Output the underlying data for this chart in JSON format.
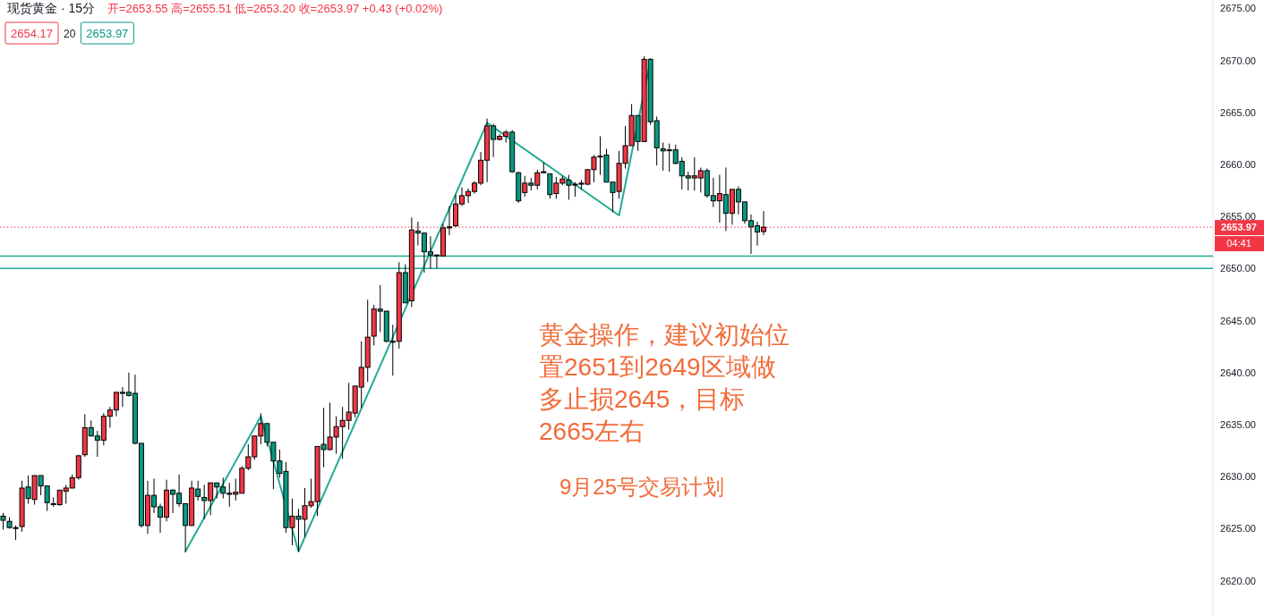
{
  "chart_data": {
    "type": "candlestick",
    "title": "现货黄金 · 15分",
    "subtitle": "开=2653.55 高=2655.51 低=2653.20 收=2653.97 +0.43 (+0.02%)",
    "categories": [
      null,
      null,
      null,
      null,
      null,
      null,
      null,
      null,
      null,
      null,
      null,
      null,
      null,
      null,
      null,
      null,
      null,
      null,
      null,
      null,
      null,
      null,
      null,
      null,
      null,
      null,
      null,
      null,
      null,
      null,
      null,
      null,
      null,
      null,
      null,
      null,
      null,
      null,
      null,
      null,
      null,
      null,
      null,
      null,
      null,
      null,
      null,
      null,
      null,
      null,
      null,
      null,
      null,
      null,
      null,
      null,
      null,
      null,
      null,
      null,
      null,
      null,
      null,
      null,
      null,
      null,
      null,
      null,
      null,
      null,
      null,
      null,
      null,
      null,
      null,
      null,
      null,
      null,
      null,
      null,
      null,
      null,
      null,
      null,
      null,
      null,
      null,
      null,
      null,
      null,
      null,
      null,
      null,
      null,
      null,
      null,
      null,
      null,
      null,
      null,
      null,
      null,
      null,
      null,
      null,
      null,
      null,
      null,
      null,
      null,
      null,
      null,
      null,
      null,
      null,
      null,
      null,
      null,
      null,
      null,
      null,
      null,
      null,
      null,
      null,
      null,
      null,
      null,
      null,
      null,
      null,
      null,
      null,
      null,
      null,
      null,
      null,
      null,
      null,
      null,
      null,
      null,
      null,
      null,
      null,
      null,
      null,
      null,
      null,
      null,
      null,
      null,
      null,
      null,
      null,
      null,
      null,
      null,
      null,
      null,
      null,
      null,
      null,
      null,
      null,
      null,
      null,
      null,
      null,
      null,
      null,
      null,
      null,
      null,
      null,
      null,
      null,
      null,
      null,
      null,
      null,
      null,
      null,
      null,
      null,
      null,
      null,
      null,
      null,
      null,
      null,
      null,
      null
    ],
    "ohlc": [
      [
        2626.2,
        2626.5,
        2624.9,
        2625.8
      ],
      [
        2625.7,
        2626.1,
        2625.0,
        2625.1
      ],
      [
        2625.1,
        2625.3,
        2623.9,
        2625.1
      ],
      [
        2625.2,
        2629.6,
        2624.7,
        2628.9
      ],
      [
        2629.0,
        2630.1,
        2627.4,
        2627.9
      ],
      [
        2627.8,
        2630.1,
        2627.3,
        2630.1
      ],
      [
        2630.1,
        2630.1,
        2628.2,
        2629.1
      ],
      [
        2629.1,
        2629.1,
        2626.7,
        2627.5
      ],
      [
        2627.4,
        2628.0,
        2627.1,
        2627.4
      ],
      [
        2627.3,
        2628.7,
        2627.2,
        2628.7
      ],
      [
        2628.6,
        2629.2,
        2627.4,
        2628.9
      ],
      [
        2628.9,
        2630.2,
        2628.9,
        2629.9
      ],
      [
        2629.9,
        2632.1,
        2629.7,
        2632.0
      ],
      [
        2632.1,
        2636.0,
        2631.9,
        2634.7
      ],
      [
        2634.7,
        2635.4,
        2633.9,
        2633.9
      ],
      [
        2633.9,
        2634.4,
        2631.9,
        2633.5
      ],
      [
        2633.5,
        2636.1,
        2633.0,
        2635.8
      ],
      [
        2635.8,
        2636.7,
        2634.7,
        2636.4
      ],
      [
        2636.4,
        2638.1,
        2635.8,
        2638.1
      ],
      [
        2638.0,
        2638.6,
        2636.7,
        2638.1
      ],
      [
        2638.1,
        2640.0,
        2637.7,
        2637.8
      ],
      [
        2638.0,
        2639.8,
        2633.1,
        2633.2
      ],
      [
        2633.2,
        2633.2,
        2625.1,
        2625.3
      ],
      [
        2625.3,
        2629.6,
        2624.5,
        2628.2
      ],
      [
        2628.2,
        2629.8,
        2626.5,
        2627.1
      ],
      [
        2627.1,
        2627.4,
        2624.6,
        2626.1
      ],
      [
        2626.1,
        2629.7,
        2625.7,
        2628.7
      ],
      [
        2628.7,
        2628.8,
        2626.5,
        2628.3
      ],
      [
        2628.4,
        2630.2,
        2627.1,
        2627.4
      ],
      [
        2627.4,
        2627.4,
        2622.7,
        2625.3
      ],
      [
        2625.3,
        2629.6,
        2625.3,
        2628.9
      ],
      [
        2628.8,
        2629.6,
        2627.7,
        2628.1
      ],
      [
        2628.0,
        2629.2,
        2625.9,
        2627.7
      ],
      [
        2627.7,
        2629.4,
        2626.3,
        2629.4
      ],
      [
        2629.4,
        2629.4,
        2627.9,
        2629.0
      ],
      [
        2629.0,
        2629.9,
        2627.9,
        2628.4
      ],
      [
        2628.4,
        2629.4,
        2627.1,
        2628.3
      ],
      [
        2628.3,
        2629.8,
        2627.7,
        2628.5
      ],
      [
        2628.4,
        2631.0,
        2628.4,
        2630.8
      ],
      [
        2630.8,
        2633.1,
        2630.6,
        2631.9
      ],
      [
        2631.9,
        2633.9,
        2631.6,
        2633.9
      ],
      [
        2633.9,
        2636.1,
        2633.1,
        2635.1
      ],
      [
        2635.1,
        2635.1,
        2632.9,
        2633.3
      ],
      [
        2633.3,
        2633.3,
        2628.8,
        2631.5
      ],
      [
        2631.5,
        2632.6,
        2629.9,
        2630.3
      ],
      [
        2630.5,
        2631.4,
        2624.6,
        2625.1
      ],
      [
        2625.1,
        2627.9,
        2623.4,
        2626.2
      ],
      [
        2626.2,
        2626.9,
        2622.8,
        2625.9
      ],
      [
        2625.9,
        2628.9,
        2624.2,
        2627.2
      ],
      [
        2627.2,
        2629.8,
        2627.0,
        2627.6
      ],
      [
        2627.6,
        2632.9,
        2626.2,
        2632.9
      ],
      [
        2633.1,
        2636.6,
        2630.9,
        2632.6
      ],
      [
        2632.6,
        2637.1,
        2632.5,
        2633.8
      ],
      [
        2633.8,
        2635.8,
        2632.2,
        2634.8
      ],
      [
        2634.8,
        2636.7,
        2631.7,
        2635.4
      ],
      [
        2635.4,
        2639.0,
        2634.5,
        2636.2
      ],
      [
        2636.1,
        2638.7,
        2635.7,
        2638.7
      ],
      [
        2638.6,
        2643.0,
        2636.6,
        2640.5
      ],
      [
        2640.5,
        2647.0,
        2639.1,
        2643.4
      ],
      [
        2643.5,
        2646.5,
        2642.6,
        2646.1
      ],
      [
        2646.1,
        2648.4,
        2643.9,
        2645.9
      ],
      [
        2645.9,
        2645.9,
        2642.9,
        2643.0
      ],
      [
        2643.0,
        2644.6,
        2639.7,
        2643.0
      ],
      [
        2643.0,
        2650.6,
        2642.3,
        2649.6
      ],
      [
        2649.6,
        2650.4,
        2646.7,
        2646.7
      ],
      [
        2646.9,
        2654.9,
        2646.3,
        2653.7
      ],
      [
        2653.6,
        2654.5,
        2652.2,
        2653.4
      ],
      [
        2653.4,
        2653.4,
        2649.6,
        2651.6
      ],
      [
        2651.6,
        2653.1,
        2650.0,
        2651.3
      ],
      [
        2651.3,
        2651.3,
        2650.0,
        2651.3
      ],
      [
        2651.2,
        2654.3,
        2651.2,
        2653.9
      ],
      [
        2653.9,
        2656.0,
        2653.2,
        2654.0
      ],
      [
        2654.1,
        2657.1,
        2654.0,
        2656.2
      ],
      [
        2656.2,
        2657.8,
        2656.0,
        2657.0
      ],
      [
        2657.0,
        2657.7,
        2656.3,
        2657.4
      ],
      [
        2657.4,
        2658.4,
        2657.2,
        2658.2
      ],
      [
        2658.2,
        2661.2,
        2658.0,
        2660.4
      ],
      [
        2660.4,
        2664.4,
        2658.3,
        2663.7
      ],
      [
        2663.7,
        2663.9,
        2660.7,
        2662.4
      ],
      [
        2662.4,
        2662.9,
        2662.3,
        2662.7
      ],
      [
        2662.7,
        2663.3,
        2662.1,
        2663.1
      ],
      [
        2663.1,
        2663.3,
        2659.2,
        2659.3
      ],
      [
        2659.2,
        2659.3,
        2656.3,
        2656.5
      ],
      [
        2657.3,
        2658.9,
        2656.9,
        2658.2
      ],
      [
        2658.2,
        2658.7,
        2657.5,
        2658.0
      ],
      [
        2658.0,
        2659.5,
        2657.6,
        2659.2
      ],
      [
        2659.2,
        2660.2,
        2659.2,
        2659.3
      ],
      [
        2659.1,
        2659.1,
        2656.7,
        2657.1
      ],
      [
        2657.2,
        2658.8,
        2656.7,
        2658.2
      ],
      [
        2658.2,
        2658.9,
        2658.0,
        2658.6
      ],
      [
        2658.5,
        2659.0,
        2656.6,
        2658.0
      ],
      [
        2658.1,
        2658.3,
        2656.9,
        2658.1
      ],
      [
        2658.1,
        2658.5,
        2657.6,
        2658.2
      ],
      [
        2658.1,
        2659.5,
        2658.0,
        2659.5
      ],
      [
        2659.5,
        2660.9,
        2658.3,
        2660.7
      ],
      [
        2660.8,
        2662.7,
        2659.0,
        2660.8
      ],
      [
        2660.9,
        2661.5,
        2658.3,
        2658.3
      ],
      [
        2658.3,
        2658.3,
        2655.4,
        2657.3
      ],
      [
        2657.4,
        2661.3,
        2656.7,
        2660.1
      ],
      [
        2660.1,
        2663.7,
        2659.6,
        2661.8
      ],
      [
        2661.8,
        2665.8,
        2661.8,
        2664.7
      ],
      [
        2664.7,
        2664.7,
        2661.3,
        2662.2
      ],
      [
        2662.2,
        2670.4,
        2662.2,
        2670.1
      ],
      [
        2670.1,
        2670.2,
        2663.8,
        2664.1
      ],
      [
        2664.2,
        2664.6,
        2659.9,
        2661.6
      ],
      [
        2661.5,
        2662.1,
        2659.4,
        2661.3
      ],
      [
        2661.4,
        2662.0,
        2659.3,
        2661.4
      ],
      [
        2661.4,
        2661.9,
        2660.0,
        2660.1
      ],
      [
        2660.3,
        2660.7,
        2657.6,
        2658.9
      ],
      [
        2658.9,
        2659.3,
        2657.5,
        2658.7
      ],
      [
        2658.7,
        2660.7,
        2657.5,
        2658.9
      ],
      [
        2658.7,
        2659.7,
        2657.3,
        2659.4
      ],
      [
        2659.4,
        2659.6,
        2656.8,
        2657.0
      ],
      [
        2657.0,
        2658.7,
        2655.9,
        2656.5
      ],
      [
        2656.5,
        2659.0,
        2654.4,
        2657.2
      ],
      [
        2657.1,
        2659.7,
        2653.6,
        2655.3
      ],
      [
        2655.3,
        2657.6,
        2654.2,
        2657.6
      ],
      [
        2657.6,
        2657.9,
        2655.2,
        2656.4
      ],
      [
        2656.4,
        2656.4,
        2654.3,
        2654.6
      ],
      [
        2654.6,
        2655.2,
        2651.4,
        2654.0
      ],
      [
        2654.1,
        2654.5,
        2652.2,
        2653.5
      ],
      [
        2653.55,
        2655.51,
        2653.2,
        2653.97
      ],
      null,
      null,
      null,
      null,
      null,
      null,
      null,
      null,
      null,
      null,
      null,
      null,
      null,
      null,
      null,
      null,
      null,
      null,
      null,
      null,
      null,
      null,
      null,
      null,
      null,
      null,
      null,
      null,
      null,
      null,
      null,
      null,
      null,
      null,
      null,
      null,
      null,
      null,
      null,
      null,
      null,
      null,
      null,
      null,
      null,
      null,
      null,
      null,
      null,
      null,
      null,
      null,
      null,
      null,
      null,
      null,
      null,
      null,
      null,
      null,
      null,
      null,
      null,
      null,
      null,
      null,
      null,
      null,
      null,
      null,
      null
    ],
    "colors": [
      "#089981",
      "#089981",
      "#f23645",
      "#f23645",
      "#089981",
      "#f23645",
      "#089981",
      "#089981",
      "#f23645",
      "#f23645",
      "#f23645",
      "#f23645",
      "#f23645",
      "#f23645",
      "#089981",
      "#089981",
      "#f23645",
      "#f23645",
      "#f23645",
      "#f23645",
      "#089981",
      "#089981",
      "#089981",
      "#f23645",
      "#089981",
      "#089981",
      "#f23645",
      "#089981",
      "#089981",
      "#089981",
      "#f23645",
      "#089981",
      "#089981",
      "#f23645",
      "#089981",
      "#089981",
      "#089981",
      "#f23645",
      "#f23645",
      "#f23645",
      "#f23645",
      "#f23645",
      "#089981",
      "#089981",
      "#089981",
      "#089981",
      "#f23645",
      "#089981",
      "#f23645",
      "#f23645",
      "#f23645",
      "#089981",
      "#f23645",
      "#f23645",
      "#f23645",
      "#f23645",
      "#f23645",
      "#f23645",
      "#f23645",
      "#f23645",
      "#089981",
      "#089981",
      "#f23645",
      "#f23645",
      "#089981",
      "#f23645",
      "#089981",
      "#089981",
      "#089981",
      "#f23645",
      "#f23645",
      "#f23645",
      "#f23645",
      "#f23645",
      "#f23645",
      "#f23645",
      "#f23645",
      "#f23645",
      "#089981",
      "#f23645",
      "#f23645",
      "#089981",
      "#089981",
      "#f23645",
      "#089981",
      "#f23645",
      "#f23645",
      "#089981",
      "#f23645",
      "#f23645",
      "#089981",
      "#f23645",
      "#f23645",
      "#f23645",
      "#f23645",
      "#f23645",
      "#089981",
      "#089981",
      "#f23645",
      "#f23645",
      "#f23645",
      "#089981",
      "#f23645",
      "#089981",
      "#089981",
      "#089981",
      "#f23645",
      "#089981",
      "#089981",
      "#089981",
      "#f23645",
      "#f23645",
      "#089981",
      "#089981",
      "#f23645",
      "#089981",
      "#f23645",
      "#089981",
      "#089981",
      "#089981",
      "#089981",
      "#f23645",
      null,
      null,
      null,
      null,
      null,
      null,
      null,
      null,
      null,
      null,
      null,
      null,
      null,
      null,
      null,
      null,
      null,
      null,
      null,
      null,
      null,
      null,
      null,
      null,
      null,
      null,
      null,
      null,
      null,
      null,
      null,
      null,
      null,
      null,
      null,
      null,
      null,
      null,
      null,
      null,
      null,
      null,
      null,
      null,
      null,
      null,
      null,
      null,
      null,
      null,
      null,
      null,
      null,
      null,
      null,
      null,
      null,
      null,
      null,
      null,
      null,
      null,
      null,
      null,
      null,
      null,
      null,
      null,
      null,
      null,
      null
    ],
    "series": [
      {
        "type": "line",
        "color": "#22ab94",
        "values": [
          null,
          null,
          null,
          null,
          null,
          null,
          null,
          null,
          null,
          null,
          null,
          null,
          null,
          null,
          null,
          null,
          null,
          null,
          null,
          null,
          null,
          null,
          null,
          null,
          null,
          null,
          null,
          null,
          null,
          2622.8,
          null,
          null,
          null,
          null,
          null,
          null,
          null,
          null,
          null,
          null,
          null,
          2635.8,
          null,
          null,
          null,
          null,
          null,
          2622.8,
          null,
          null,
          null,
          null,
          null,
          null,
          null,
          null,
          null,
          null,
          null,
          null,
          null,
          null,
          null,
          null,
          null,
          null,
          null,
          null,
          null,
          null,
          null,
          null,
          null,
          null,
          null,
          null,
          null,
          2664.0,
          null,
          null,
          null,
          null,
          null,
          null,
          null,
          null,
          null,
          null,
          null,
          null,
          null,
          null,
          null,
          null,
          null,
          null,
          null,
          null,
          2655.1,
          null,
          null,
          null,
          null,
          2670.0,
          null,
          null,
          null,
          null,
          null,
          null,
          null,
          null,
          null,
          null,
          null,
          null,
          null,
          null,
          null,
          null,
          null,
          null,
          null,
          null,
          null,
          null,
          null,
          null,
          null,
          null,
          null,
          null,
          null,
          null,
          null,
          null,
          null,
          null,
          null,
          null,
          null,
          null,
          null,
          null,
          null,
          null,
          null,
          null,
          null,
          null,
          null,
          null,
          null,
          null,
          null,
          null,
          null,
          null,
          null,
          null,
          null,
          null,
          null,
          null,
          null,
          null,
          null,
          null,
          null,
          null,
          null,
          null,
          null,
          null,
          null,
          null,
          null,
          null,
          null,
          null,
          null,
          null,
          null,
          null,
          null,
          null,
          null,
          null,
          null,
          null,
          null,
          null,
          null
        ]
      }
    ],
    "ref_lines": [
      {
        "axis": "y",
        "value": 2651.2,
        "color": "#22ab94"
      },
      {
        "axis": "y",
        "value": 2650.0,
        "color": "#22ab94"
      },
      {
        "axis": "y",
        "value": 2653.97,
        "label": "2653.97",
        "color": "#f23645",
        "line_style": "dotted"
      }
    ],
    "ylim": [
      2616.7,
      2675.8
    ],
    "yticks": [
      {
        "value": 2620,
        "label": "2620.00"
      },
      {
        "value": 2625,
        "label": "2625.00"
      },
      {
        "value": 2630,
        "label": "2630.00"
      },
      {
        "value": 2635,
        "label": "2635.00"
      },
      {
        "value": 2640,
        "label": "2640.00"
      },
      {
        "value": 2645,
        "label": "2645.00"
      },
      {
        "value": 2650,
        "label": "2650.00"
      },
      {
        "value": 2655,
        "label": "2655.00"
      },
      {
        "value": 2660,
        "label": "2660.00"
      },
      {
        "value": 2665,
        "label": "2665.00"
      },
      {
        "value": 2670,
        "label": "2670.00"
      },
      {
        "value": 2675,
        "label": "2675.00"
      }
    ],
    "tick_labels": "y",
    "annotations": [
      "2654.17",
      "20",
      "2653.97",
      "04:41",
      "黄金操作，建议初始位置2651到2649区域做多止损2645，目标2665左右",
      "9月25号交易计划"
    ]
  }
}
